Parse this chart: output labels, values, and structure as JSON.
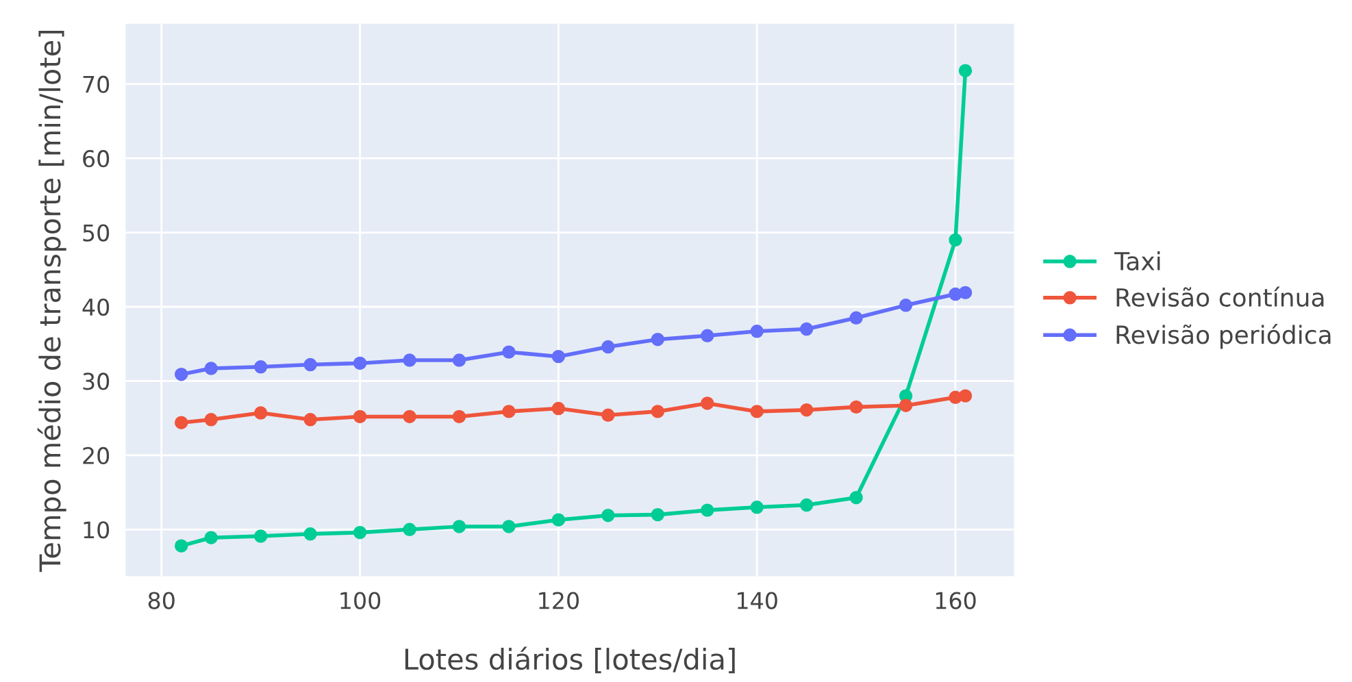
{
  "chart_data": {
    "type": "line",
    "xlabel": "Lotes diários [lotes/dia]",
    "ylabel": "Tempo médio de transporte [min/lote]",
    "x": [
      82,
      85,
      90,
      95,
      100,
      105,
      110,
      115,
      120,
      125,
      130,
      135,
      140,
      145,
      150,
      155,
      160,
      161
    ],
    "series": [
      {
        "name": "Taxi",
        "color": "#00cc96",
        "values": [
          7.8,
          8.9,
          9.1,
          9.4,
          9.6,
          10.0,
          10.4,
          10.4,
          11.3,
          11.9,
          12.0,
          12.6,
          13.0,
          13.3,
          14.3,
          28.0,
          49.0,
          71.8
        ]
      },
      {
        "name": "Revisão contínua",
        "color": "#ef553b",
        "values": [
          24.4,
          24.8,
          25.7,
          24.8,
          25.2,
          25.2,
          25.2,
          25.9,
          26.3,
          25.4,
          25.9,
          27.0,
          25.9,
          26.1,
          26.5,
          26.7,
          27.8,
          28.0
        ]
      },
      {
        "name": "Revisão periódica",
        "color": "#636efa",
        "values": [
          30.9,
          31.7,
          31.9,
          32.2,
          32.4,
          32.8,
          32.8,
          33.9,
          33.3,
          34.6,
          35.6,
          36.1,
          36.7,
          37.0,
          38.5,
          40.2,
          41.7,
          41.9
        ]
      }
    ],
    "xlim": [
      76.4,
      165.9
    ],
    "ylim": [
      3.7,
      78.1
    ],
    "xticks": [
      80,
      100,
      120,
      140,
      160
    ],
    "yticks": [
      10,
      20,
      30,
      40,
      50,
      60,
      70
    ],
    "grid": true,
    "legend": "right",
    "marker": "circle",
    "line_style": "solid"
  }
}
